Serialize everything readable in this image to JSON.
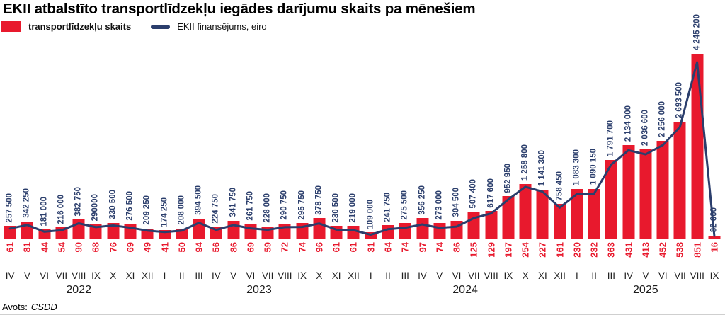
{
  "title": "EKII atbalstīto transportlīdzekļu iegādes darījumu skaits pa mēnešiem",
  "legend": {
    "bars_label": "transportlīdzekļu skaits",
    "line_label": "EKII finansējums, eiro"
  },
  "source": {
    "prefix": "Avots:",
    "name": "CSDD"
  },
  "colors": {
    "bar": "#e8192d",
    "line": "#2b3e6c",
    "count_label": "#e8192d",
    "euro_label": "#2b3e6c"
  },
  "chart_data": {
    "type": "bar",
    "title": "EKII atbalstīto transportlīdzekļu iegādes darījumu skaits pa mēnešiem",
    "categories": [
      "IV",
      "V",
      "VI",
      "VII",
      "VIII",
      "IX",
      "X",
      "XI",
      "XII",
      "I",
      "II",
      "III",
      "IV",
      "V",
      "VI",
      "VII",
      "VIII",
      "IX",
      "X",
      "XI",
      "XII",
      "I",
      "II",
      "III",
      "IV",
      "V",
      "VI",
      "VII",
      "VIII",
      "IX",
      "X",
      "XI",
      "XII",
      "I",
      "II",
      "III",
      "IV",
      "V",
      "VI",
      "VII",
      "VIII",
      "IX"
    ],
    "year_groups": [
      {
        "label": "2022",
        "months": 9
      },
      {
        "label": "2023",
        "months": 12
      },
      {
        "label": "2024",
        "months": 12
      },
      {
        "label": "2025",
        "months": 9
      }
    ],
    "series": [
      {
        "name": "transportlīdzekļu skaits",
        "type": "bar",
        "color": "#e8192d",
        "values": [
          61,
          81,
          44,
          54,
          90,
          68,
          76,
          69,
          49,
          41,
          50,
          94,
          56,
          86,
          69,
          59,
          72,
          74,
          96,
          61,
          61,
          31,
          64,
          74,
          97,
          74,
          86,
          125,
          129,
          197,
          254,
          227,
          161,
          230,
          232,
          363,
          431,
          413,
          452,
          538,
          851,
          16
        ]
      },
      {
        "name": "EKII finansējums, eiro",
        "type": "line",
        "color": "#2b3e6c",
        "values": [
          257500,
          342250,
          181000,
          216000,
          382750,
          290000,
          330500,
          276500,
          209250,
          174250,
          208000,
          394500,
          224750,
          341750,
          261750,
          228000,
          290750,
          295750,
          378750,
          230500,
          219000,
          109000,
          241750,
          275500,
          356250,
          273000,
          304500,
          507400,
          617600,
          952950,
          1258800,
          1141300,
          758450,
          1083300,
          1090150,
          1791700,
          2134000,
          2036600,
          2256000,
          2693500,
          4245200,
          82600
        ],
        "labels": [
          "257 500",
          "342 250",
          "181 000",
          "216 000",
          "382 750",
          "290000",
          "330 500",
          "276 500",
          "209 250",
          "174 250",
          "208 000",
          "394 500",
          "224 750",
          "341 750",
          "261 750",
          "228 000",
          "290 750",
          "295 750",
          "378 750",
          "230 500",
          "219 000",
          "109 000",
          "241 750",
          "275 500",
          "356 250",
          "273 000",
          "304 500",
          "507 400",
          "617 600",
          "952 950",
          "1 258 800",
          "1 141 300",
          "758 450",
          "1 083 300",
          "1 090 150",
          "1 791 700",
          "2 134 000",
          "2 036 600",
          "2 256 000",
          "2 693 500",
          "4 245 200",
          "82 600"
        ]
      }
    ],
    "ylim_bars": [
      0,
      900
    ],
    "ylim_line": [
      0,
      4500000
    ],
    "grid": false,
    "legend_position": "top-left"
  }
}
